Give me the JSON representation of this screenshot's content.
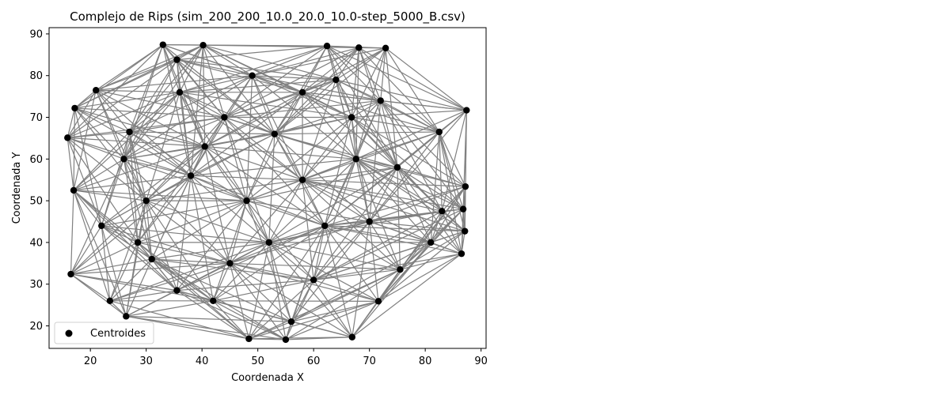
{
  "chart_data": {
    "type": "scatter",
    "title": "Complejo de Rips (sim_200_200_10.0_20.0_10.0-step_5000_B.csv)",
    "xlabel": "Coordenada X",
    "ylabel": "Coordenada Y",
    "xlim": [
      12.6,
      90.9
    ],
    "ylim": [
      14.6,
      91.5
    ],
    "xticks": [
      20,
      30,
      40,
      50,
      60,
      70,
      80,
      90
    ],
    "yticks": [
      20,
      30,
      40,
      50,
      60,
      70,
      80,
      90
    ],
    "legend": {
      "position": "lower-left",
      "entries": [
        "Centroides"
      ]
    },
    "grid": false,
    "colors": {
      "points": "#000000",
      "edges": "#808080"
    },
    "edge_rule": "connect all pairs of centroids within a distance threshold",
    "edge_threshold": 32,
    "series": [
      {
        "name": "Centroides",
        "points": [
          [
            33.0,
            87.4
          ],
          [
            40.2,
            87.3
          ],
          [
            62.4,
            87.1
          ],
          [
            68.1,
            86.7
          ],
          [
            72.9,
            86.6
          ],
          [
            35.5,
            83.8
          ],
          [
            21.0,
            76.5
          ],
          [
            17.2,
            72.2
          ],
          [
            87.4,
            71.7
          ],
          [
            15.9,
            65.1
          ],
          [
            17.0,
            52.5
          ],
          [
            87.2,
            53.4
          ],
          [
            86.8,
            48.0
          ],
          [
            87.1,
            42.7
          ],
          [
            86.5,
            37.3
          ],
          [
            16.5,
            32.4
          ],
          [
            23.5,
            26.0
          ],
          [
            26.4,
            22.3
          ],
          [
            48.4,
            16.9
          ],
          [
            55.0,
            16.7
          ],
          [
            66.9,
            17.3
          ],
          [
            71.6,
            25.9
          ],
          [
            67.6,
            60.0
          ],
          [
            40.5,
            63.0
          ],
          [
            27.0,
            66.5
          ],
          [
            58.0,
            76.0
          ],
          [
            82.5,
            66.5
          ],
          [
            66.8,
            70.0
          ],
          [
            22.0,
            44.0
          ],
          [
            28.5,
            40.0
          ],
          [
            31.0,
            36.0
          ],
          [
            35.5,
            28.5
          ],
          [
            42.0,
            26.0
          ],
          [
            56.0,
            21.0
          ],
          [
            60.0,
            31.0
          ],
          [
            75.5,
            33.5
          ],
          [
            81.0,
            40.0
          ],
          [
            83.0,
            47.5
          ],
          [
            70.0,
            45.0
          ],
          [
            48.0,
            50.0
          ],
          [
            58.0,
            55.0
          ],
          [
            38.0,
            56.0
          ],
          [
            52.0,
            40.0
          ],
          [
            45.0,
            35.0
          ],
          [
            62.0,
            44.0
          ],
          [
            30.0,
            50.0
          ],
          [
            44.0,
            70.0
          ],
          [
            53.0,
            66.0
          ],
          [
            75.0,
            58.0
          ],
          [
            36.0,
            76.0
          ],
          [
            49.0,
            80.0
          ],
          [
            26.0,
            60.0
          ],
          [
            64.0,
            79.0
          ],
          [
            72.0,
            74.0
          ]
        ]
      }
    ]
  }
}
